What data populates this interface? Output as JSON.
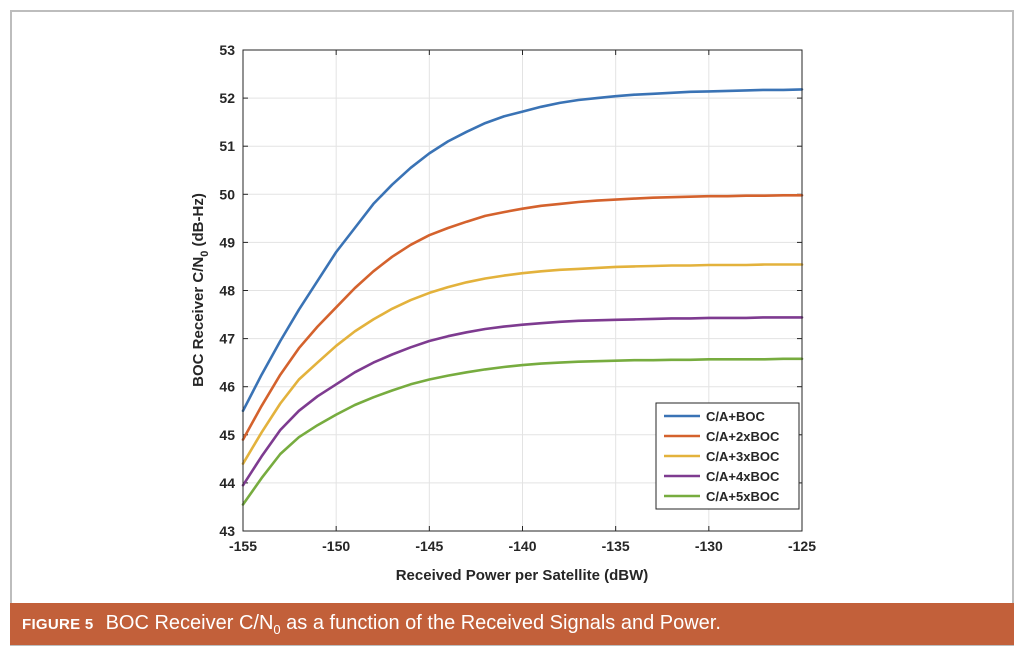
{
  "caption": {
    "label": "FIGURE 5",
    "text_pre": "BOC Receiver C/N",
    "text_sub": "0",
    "text_post": " as a function of the Received Signals and Power."
  },
  "chart_data": {
    "type": "line",
    "title": "",
    "xlabel": "Received Power per Satellite (dBW)",
    "ylabel_pre": "BOC Receiver C/N",
    "ylabel_sub": "0",
    "ylabel_post": " (dB-Hz)",
    "xlim": [
      -155,
      -125
    ],
    "ylim": [
      43,
      53
    ],
    "xticks": [
      -155,
      -150,
      -145,
      -140,
      -135,
      -130,
      -125
    ],
    "yticks": [
      43,
      44,
      45,
      46,
      47,
      48,
      49,
      50,
      51,
      52,
      53
    ],
    "grid": true,
    "legend_position": "bottom-right",
    "x": [
      -155,
      -154,
      -153,
      -152,
      -151,
      -150,
      -149,
      -148,
      -147,
      -146,
      -145,
      -144,
      -143,
      -142,
      -141,
      -140,
      -139,
      -138,
      -137,
      -136,
      -135,
      -134,
      -133,
      -132,
      -131,
      -130,
      -129,
      -128,
      -127,
      -126,
      -125
    ],
    "series": [
      {
        "name": "C/A+BOC",
        "color": "#3a73b5",
        "values": [
          45.5,
          46.25,
          46.95,
          47.6,
          48.2,
          48.8,
          49.3,
          49.8,
          50.2,
          50.55,
          50.85,
          51.1,
          51.3,
          51.48,
          51.62,
          51.72,
          51.82,
          51.9,
          51.96,
          52.0,
          52.04,
          52.07,
          52.09,
          52.11,
          52.13,
          52.14,
          52.15,
          52.16,
          52.17,
          52.17,
          52.18
        ]
      },
      {
        "name": "C/A+2xBOC",
        "color": "#d4622d",
        "values": [
          44.9,
          45.6,
          46.25,
          46.8,
          47.25,
          47.65,
          48.05,
          48.4,
          48.7,
          48.95,
          49.15,
          49.3,
          49.43,
          49.55,
          49.63,
          49.7,
          49.76,
          49.8,
          49.84,
          49.87,
          49.89,
          49.91,
          49.93,
          49.94,
          49.95,
          49.96,
          49.96,
          49.97,
          49.97,
          49.98,
          49.98
        ]
      },
      {
        "name": "C/A+3xBOC",
        "color": "#e3b23c",
        "values": [
          44.4,
          45.05,
          45.65,
          46.15,
          46.5,
          46.85,
          47.15,
          47.4,
          47.62,
          47.8,
          47.95,
          48.07,
          48.17,
          48.25,
          48.31,
          48.36,
          48.4,
          48.43,
          48.45,
          48.47,
          48.49,
          48.5,
          48.51,
          48.52,
          48.52,
          48.53,
          48.53,
          48.53,
          48.54,
          48.54,
          48.54
        ]
      },
      {
        "name": "C/A+4xBOC",
        "color": "#7e3b90",
        "values": [
          43.95,
          44.55,
          45.1,
          45.5,
          45.8,
          46.05,
          46.3,
          46.5,
          46.67,
          46.82,
          46.95,
          47.05,
          47.13,
          47.2,
          47.25,
          47.29,
          47.32,
          47.35,
          47.37,
          47.38,
          47.39,
          47.4,
          47.41,
          47.42,
          47.42,
          47.43,
          47.43,
          47.43,
          47.44,
          47.44,
          47.44
        ]
      },
      {
        "name": "C/A+5xBOC",
        "color": "#77ac3f",
        "values": [
          43.55,
          44.1,
          44.6,
          44.95,
          45.2,
          45.42,
          45.62,
          45.78,
          45.92,
          46.05,
          46.15,
          46.23,
          46.3,
          46.36,
          46.41,
          46.45,
          46.48,
          46.5,
          46.52,
          46.53,
          46.54,
          46.55,
          46.55,
          46.56,
          46.56,
          46.57,
          46.57,
          46.57,
          46.57,
          46.58,
          46.58
        ]
      }
    ]
  }
}
